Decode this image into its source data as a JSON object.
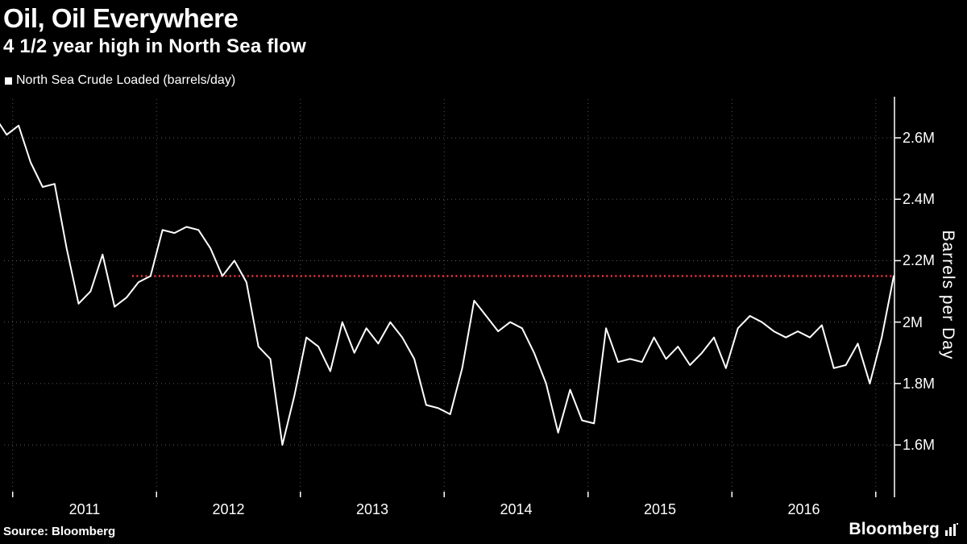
{
  "header": {
    "title": "Oil, Oil Everywhere",
    "subtitle": "4 1/2 year high in North Sea flow"
  },
  "legend": {
    "label": "North Sea Crude Loaded (barrels/day)",
    "swatch_color": "#ffffff"
  },
  "chart_data": {
    "type": "line",
    "title": "Oil, Oil Everywhere",
    "subtitle": "4 1/2 year high in North Sea flow",
    "series_name": "North Sea Crude Loaded (barrels/day)",
    "ylabel": "Barrels per Day",
    "xlabel": "",
    "unit": "M barrels/day",
    "x_start_month": "Nov 2010",
    "x_start_decimal_year": 2010.875,
    "x_step_years": 0.0833333,
    "values": [
      2.67,
      2.61,
      2.64,
      2.52,
      2.44,
      2.45,
      2.24,
      2.06,
      2.1,
      2.22,
      2.05,
      2.08,
      2.13,
      2.15,
      2.3,
      2.29,
      2.31,
      2.3,
      2.24,
      2.15,
      2.2,
      2.13,
      1.92,
      1.88,
      1.6,
      1.76,
      1.95,
      1.92,
      1.84,
      2.0,
      1.9,
      1.98,
      1.93,
      2.0,
      1.95,
      1.88,
      1.73,
      1.72,
      1.7,
      1.85,
      2.07,
      2.02,
      1.97,
      2.0,
      1.98,
      1.9,
      1.8,
      1.64,
      1.78,
      1.68,
      1.67,
      1.98,
      1.87,
      1.88,
      1.87,
      1.95,
      1.88,
      1.92,
      1.86,
      1.9,
      1.95,
      1.85,
      1.98,
      2.02,
      2.0,
      1.97,
      1.95,
      1.97,
      1.95,
      1.99,
      1.85,
      1.86,
      1.93,
      1.8,
      1.95,
      2.15
    ],
    "xlim": [
      2010.94,
      2017.13
    ],
    "ylim": [
      1.448,
      2.726
    ],
    "yticks": [
      {
        "value": 1.6,
        "label": "1.6M"
      },
      {
        "value": 1.8,
        "label": "1.8M"
      },
      {
        "value": 2.0,
        "label": "2M"
      },
      {
        "value": 2.2,
        "label": "2.2M"
      },
      {
        "value": 2.4,
        "label": "2.4M"
      },
      {
        "value": 2.6,
        "label": "2.6M"
      }
    ],
    "xticks": [
      {
        "value": 2011.5,
        "label": "2011"
      },
      {
        "value": 2012.5,
        "label": "2012"
      },
      {
        "value": 2013.5,
        "label": "2013"
      },
      {
        "value": 2014.5,
        "label": "2014"
      },
      {
        "value": 2015.5,
        "label": "2015"
      },
      {
        "value": 2016.5,
        "label": "2016"
      }
    ],
    "x_gridlines": [
      2011,
      2012,
      2013,
      2014,
      2015,
      2016,
      2017
    ],
    "reference_line": {
      "value": 2.15,
      "x_start": 2011.83,
      "color": "#f5333f",
      "style": "dotted"
    },
    "line_color": "#ffffff",
    "grid_color": "#585858",
    "grid": true,
    "legend_position": "top-left"
  },
  "footer": {
    "source": "Source: Bloomberg",
    "brand": "Bloomberg"
  }
}
